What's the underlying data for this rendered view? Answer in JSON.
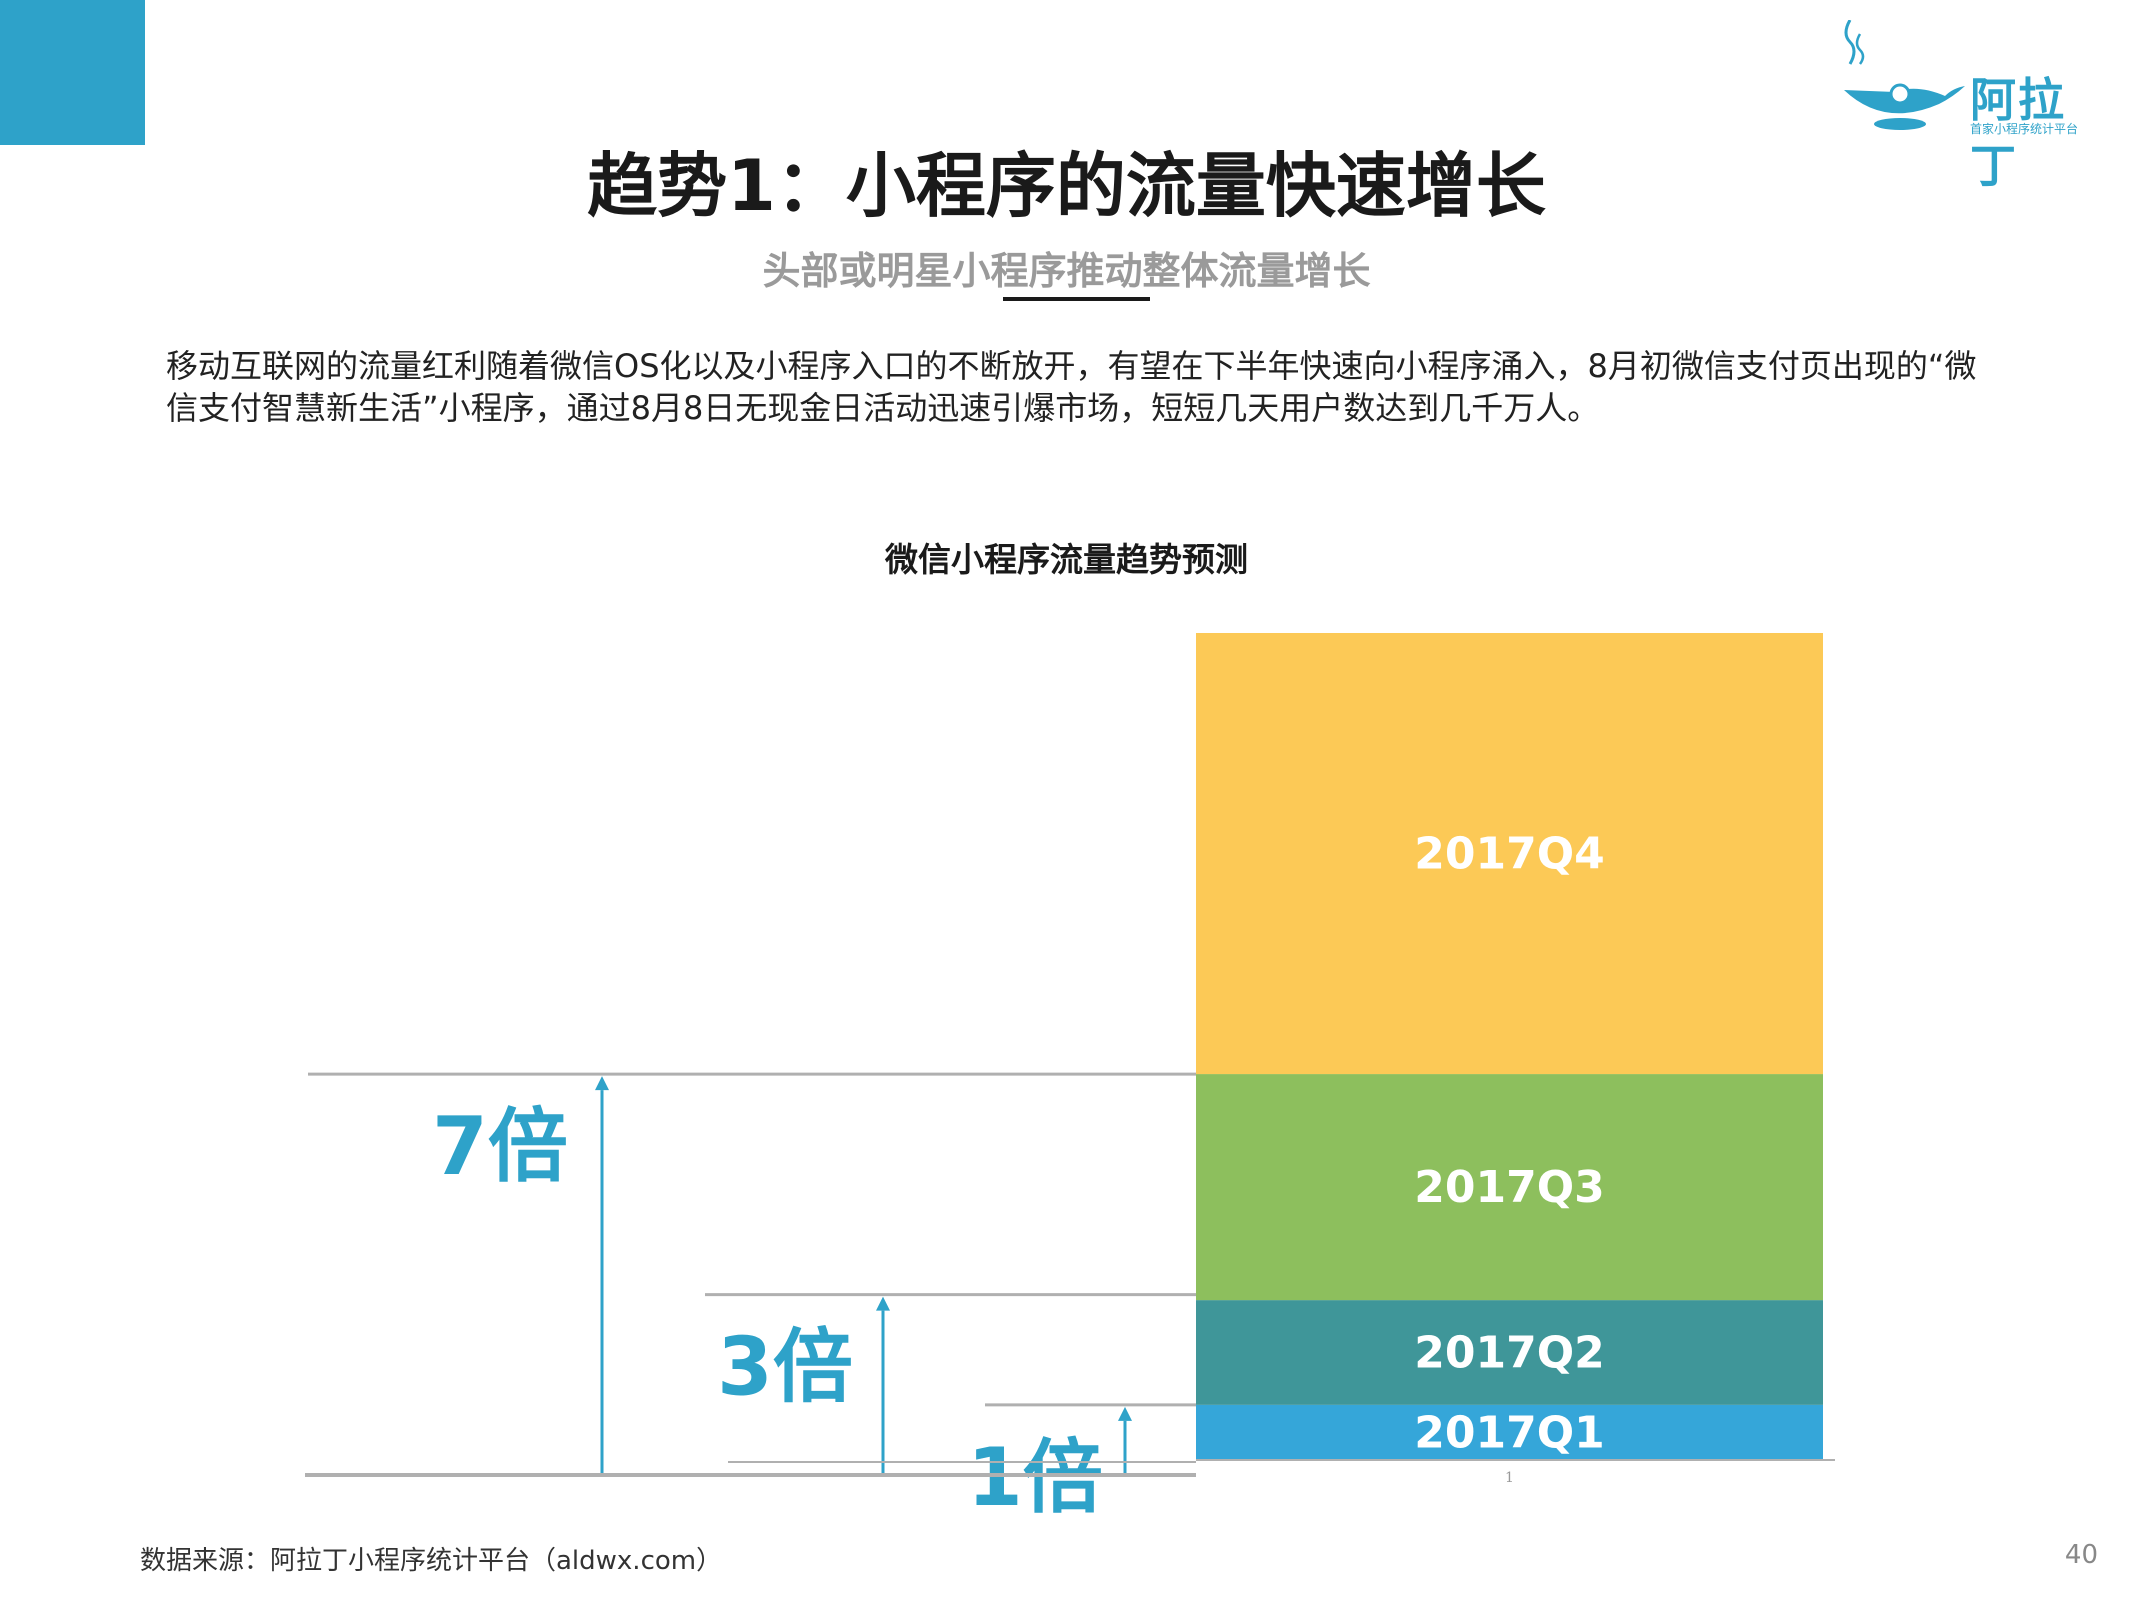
{
  "page": {
    "title": "趋势1：小程序的流量快速增长",
    "subtitle": "头部或明星小程序推动整体流量增长",
    "body": "移动互联网的流量红利随着微信OS化以及小程序入口的不断放开，有望在下半年快速向小程序涌入，8月初微信支付页出现的“微信支付智慧新生活”小程序，通过8月8日无现金日活动迅速引爆市场，短短几天用户数达到几千万人。",
    "source": "数据来源：阿拉丁小程序统计平台（aldwx.com）",
    "page_number": "40"
  },
  "logo": {
    "name": "阿拉丁",
    "tagline": "首家小程序统计平台",
    "icon": "magic-lamp-icon"
  },
  "colors": {
    "accent": "#2ea2c9",
    "arrow": "#2ea2c9",
    "Q1": "#35a6d9",
    "Q2": "#3f9699",
    "Q3": "#8dbf5d",
    "Q4": "#fcc956",
    "grid_line": "#b0b0b0"
  },
  "chart_data": {
    "type": "bar",
    "stacked": true,
    "title": "微信小程序流量趋势预测",
    "categories": [
      "1"
    ],
    "series": [
      {
        "name": "2017Q1",
        "values": [
          1
        ]
      },
      {
        "name": "2017Q2",
        "values": [
          1.9
        ]
      },
      {
        "name": "2017Q3",
        "values": [
          4.1
        ]
      },
      {
        "name": "2017Q4",
        "values": [
          8.0
        ]
      }
    ],
    "ylim": [
      0,
      15
    ],
    "annotations": [
      {
        "label": "1倍",
        "value": 1
      },
      {
        "label": "3倍",
        "value": 3
      },
      {
        "label": "7倍",
        "value": 7
      }
    ]
  }
}
